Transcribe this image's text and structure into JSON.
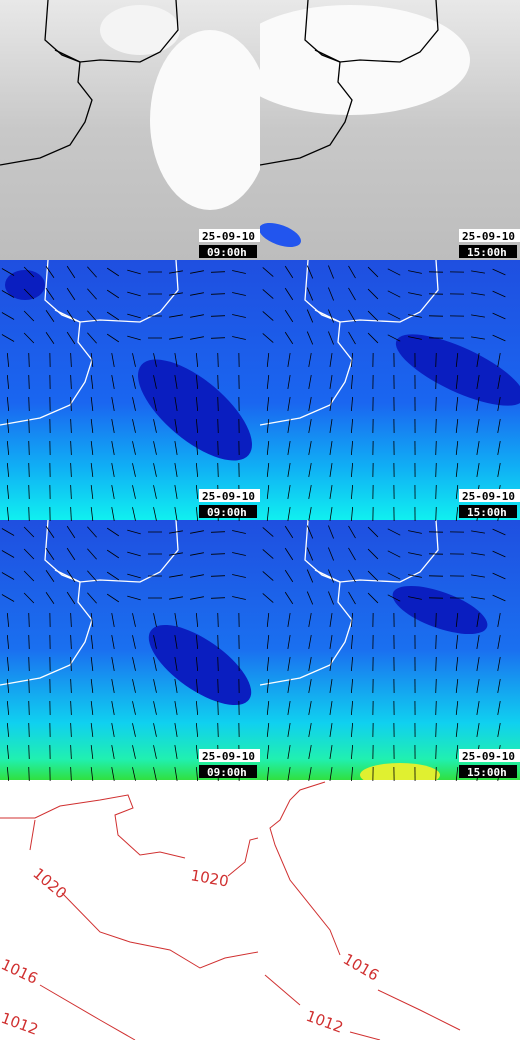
{
  "panels": [
    {
      "date": "25-09-10",
      "time": "09:00h"
    },
    {
      "date": "25-09-10",
      "time": "15:00h"
    },
    {
      "date": "25-09-10",
      "time": "09:00h"
    },
    {
      "date": "25-09-10",
      "time": "15:00h"
    },
    {
      "date": "25-09-10",
      "time": "09:00h"
    },
    {
      "date": "25-09-10",
      "time": "15:00h"
    }
  ],
  "isobars": {
    "left": [
      "1020",
      "1020",
      "1016",
      "1012"
    ],
    "right": [
      "1016",
      "1012"
    ]
  }
}
